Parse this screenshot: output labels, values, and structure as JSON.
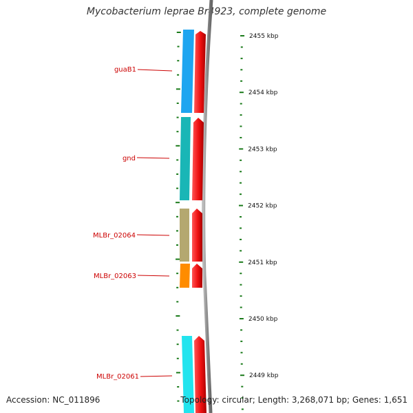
{
  "title": "Mycobacterium leprae Br4923, complete genome",
  "footer": {
    "accession": "Accession: NC_011896",
    "summary": "Topology: circular; Length: 3,268,071 bp; Genes: 1,651"
  },
  "scale_labels": [
    "2455 kbp",
    "2454 kbp",
    "2453 kbp",
    "2452 kbp",
    "2451 kbp",
    "2450 kbp",
    "2449 kbp"
  ],
  "genes": [
    {
      "name": "guaB1",
      "color": "#1ea5f0"
    },
    {
      "name": "gnd",
      "color": "#19b6b6"
    },
    {
      "name": "MLBr_02064",
      "color": "#b4a870"
    },
    {
      "name": "MLBr_02063",
      "color": "#ff8c00"
    },
    {
      "name": "MLBr_02061",
      "color": "#22e4ee"
    }
  ],
  "colors": {
    "cds_strand": "#ee1111",
    "backbone": "#888888",
    "tick": "#1a7a1a",
    "label": "#cc0000"
  }
}
